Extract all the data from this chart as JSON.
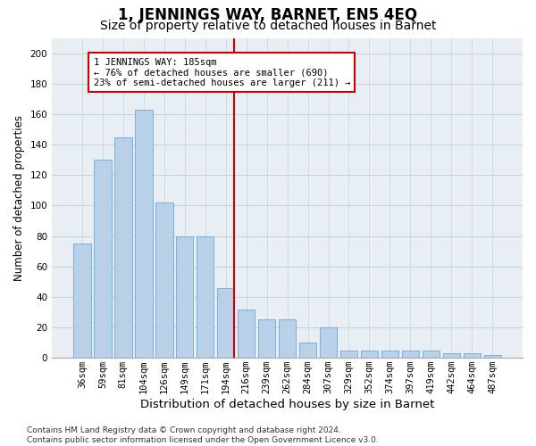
{
  "title": "1, JENNINGS WAY, BARNET, EN5 4EQ",
  "subtitle": "Size of property relative to detached houses in Barnet",
  "xlabel": "Distribution of detached houses by size in Barnet",
  "ylabel": "Number of detached properties",
  "categories": [
    "36sqm",
    "59sqm",
    "81sqm",
    "104sqm",
    "126sqm",
    "149sqm",
    "171sqm",
    "194sqm",
    "216sqm",
    "239sqm",
    "262sqm",
    "284sqm",
    "307sqm",
    "329sqm",
    "352sqm",
    "374sqm",
    "397sqm",
    "419sqm",
    "442sqm",
    "464sqm",
    "487sqm"
  ],
  "bar_heights": [
    75,
    130,
    145,
    163,
    102,
    80,
    80,
    46,
    32,
    25,
    25,
    10,
    20,
    5,
    5,
    5,
    5,
    5,
    3,
    3,
    2
  ],
  "bar_color": "#b8d0e8",
  "bar_edge_color": "#6aaad4",
  "vline_color": "#cc0000",
  "vline_index": 7.42,
  "annotation_text": "1 JENNINGS WAY: 185sqm\n← 76% of detached houses are smaller (690)\n23% of semi-detached houses are larger (211) →",
  "annotation_box_color": "white",
  "annotation_box_edge_color": "#cc0000",
  "ylim": [
    0,
    210
  ],
  "yticks": [
    0,
    20,
    40,
    60,
    80,
    100,
    120,
    140,
    160,
    180,
    200
  ],
  "grid_color": "#c8d0dc",
  "background_color": "#e8eef4",
  "footer": "Contains HM Land Registry data © Crown copyright and database right 2024.\nContains public sector information licensed under the Open Government Licence v3.0.",
  "title_fontsize": 12,
  "subtitle_fontsize": 10,
  "xlabel_fontsize": 9.5,
  "ylabel_fontsize": 8.5,
  "tick_fontsize": 7.5,
  "annotation_fontsize": 7.5,
  "footer_fontsize": 6.5
}
